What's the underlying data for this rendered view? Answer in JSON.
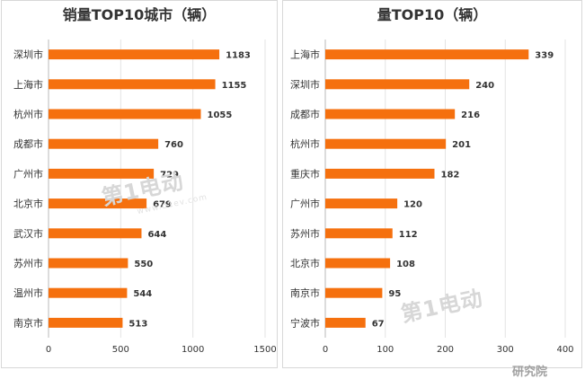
{
  "chart_data": [
    {
      "type": "bar",
      "orientation": "horizontal",
      "title": "销量TOP10城市（辆）",
      "categories": [
        "深圳市",
        "上海市",
        "杭州市",
        "成都市",
        "广州市",
        "北京市",
        "武汉市",
        "苏州市",
        "温州市",
        "南京市"
      ],
      "values": [
        1183,
        1155,
        1055,
        760,
        729,
        679,
        644,
        550,
        544,
        513
      ],
      "value_labels": [
        "1183",
        "1155",
        "1055",
        "760",
        "729",
        "679",
        "644",
        "550",
        "544",
        "513"
      ],
      "xlim": [
        0,
        1500
      ],
      "xticks": [
        0,
        500,
        1000,
        1500
      ],
      "xtick_labels": [
        "0",
        "500",
        "1000",
        "1500"
      ],
      "color": "#f5700e",
      "grid": true
    },
    {
      "type": "bar",
      "orientation": "horizontal",
      "title": "量TOP10（辆）",
      "categories": [
        "上海市",
        "深圳市",
        "成都市",
        "杭州市",
        "重庆市",
        "广州市",
        "苏州市",
        "北京市",
        "南京市",
        "宁波市"
      ],
      "values": [
        339,
        240,
        216,
        201,
        182,
        120,
        112,
        108,
        95,
        67
      ],
      "value_labels": [
        "339",
        "240",
        "216",
        "201",
        "182",
        "120",
        "112",
        "108",
        "95",
        "67"
      ],
      "xlim": [
        0,
        400
      ],
      "xticks": [
        0,
        100,
        200,
        300,
        400
      ],
      "xtick_labels": [
        "0",
        "100",
        "200",
        "300",
        "400"
      ],
      "color": "#f5700e",
      "grid": true
    }
  ],
  "watermark": {
    "text": "第1电动",
    "url": "www.d1ev.com"
  },
  "footer": {
    "text": "研究院"
  }
}
